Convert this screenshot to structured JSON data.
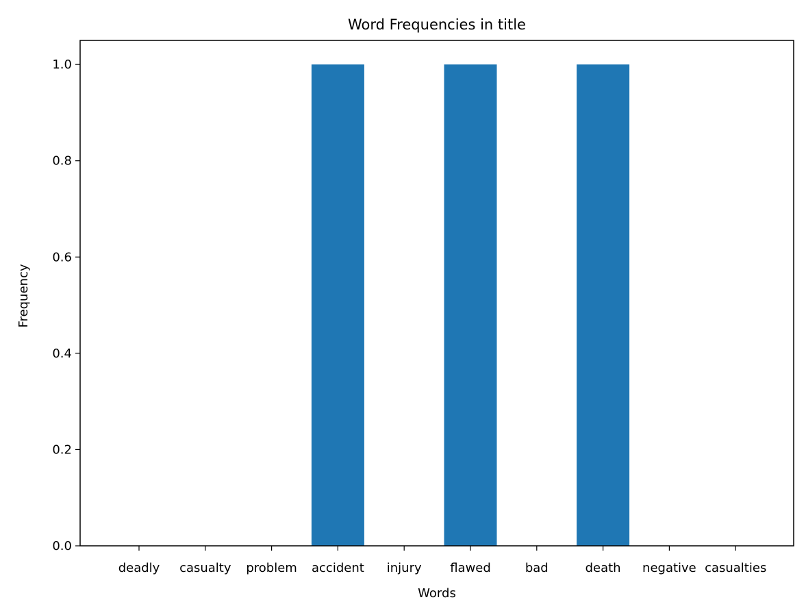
{
  "chart_data": {
    "type": "bar",
    "title": "Word Frequencies in title",
    "xlabel": "Words",
    "ylabel": "Frequency",
    "categories": [
      "deadly",
      "casualty",
      "problem",
      "accident",
      "injury",
      "flawed",
      "bad",
      "death",
      "negative",
      "casualties"
    ],
    "values": [
      0,
      0,
      0,
      1,
      0,
      1,
      0,
      1,
      0,
      0
    ],
    "ylim": [
      0,
      1.05
    ],
    "yticks": [
      "0.0",
      "0.2",
      "0.4",
      "0.6",
      "0.8",
      "1.0"
    ],
    "grid": false,
    "bar_color": "#1f77b4"
  }
}
